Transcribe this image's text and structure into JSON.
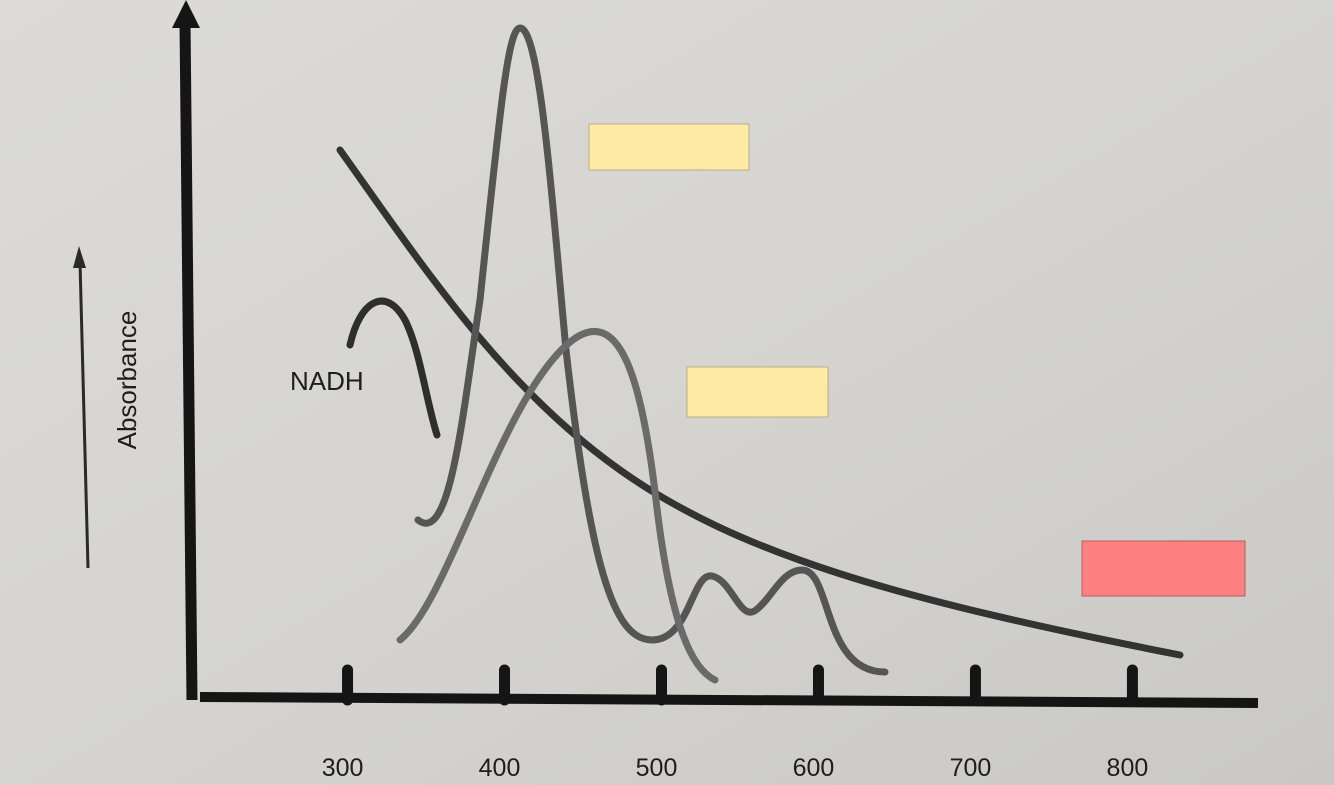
{
  "axis": {
    "y_label": "Absorbance",
    "x_ticks": [
      300,
      400,
      500,
      600,
      700,
      800
    ],
    "xlim": [
      206,
      880
    ]
  },
  "labels": {
    "nadh": "NADH"
  }
}
